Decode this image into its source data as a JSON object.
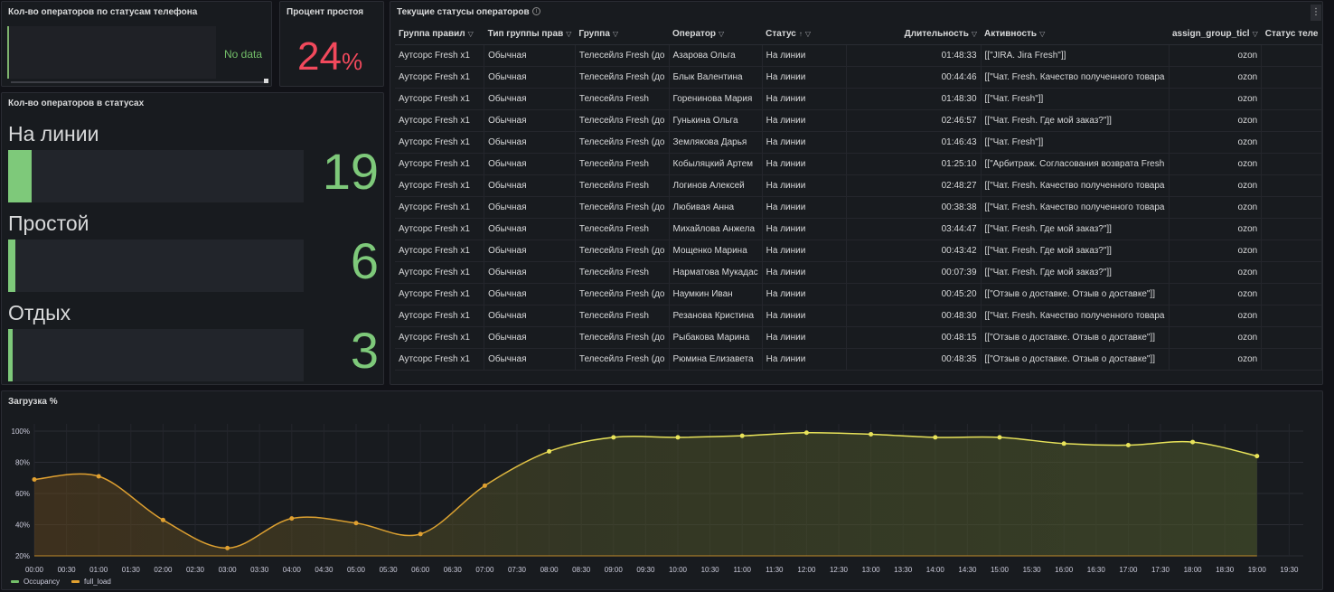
{
  "panels": {
    "phone_status": {
      "title": "Кол-во операторов по статусам телефона",
      "no_data": "No data"
    },
    "idle_percent": {
      "title": "Процент простоя",
      "value": "24",
      "unit": "%"
    },
    "operators_by_status": {
      "title": "Кол-во операторов в статусах",
      "max": 19,
      "rows": [
        {
          "label": "На линии",
          "value": "19",
          "fraction": 0.079
        },
        {
          "label": "Простой",
          "value": "6",
          "fraction": 0.025
        },
        {
          "label": "Отдых",
          "value": "3",
          "fraction": 0.014
        }
      ]
    },
    "current_statuses": {
      "title": "Текущие статусы операторов",
      "info_icon": "info-icon",
      "columns": [
        "Группа правил",
        "Тип группы прав",
        "Группа",
        "Оператор",
        "Статус",
        "Длительность",
        "Активность",
        "assign_group_ticl",
        "Статус теле"
      ],
      "sort_column": "Статус",
      "rows": [
        [
          "Аутсорс Fresh x1",
          "Обычная",
          "Телесейлз Fresh (до",
          "Азарова Ольга",
          "На линии",
          "01:48:33",
          "[[\"JIRA. Jira Fresh\"]]",
          "ozon",
          ""
        ],
        [
          "Аутсорс Fresh x1",
          "Обычная",
          "Телесейлз Fresh (до",
          "Блык Валентина",
          "На линии",
          "00:44:46",
          "[[\"Чат. Fresh. Качество полученного товара",
          "ozon",
          ""
        ],
        [
          "Аутсорс Fresh x1",
          "Обычная",
          "Телесейлз Fresh",
          "Горенинова Мария",
          "На линии",
          "01:48:30",
          "[[\"Чат. Fresh\"]]",
          "ozon",
          ""
        ],
        [
          "Аутсорс Fresh x1",
          "Обычная",
          "Телесейлз Fresh (до",
          "Гунькина Ольга",
          "На линии",
          "02:46:57",
          "[[\"Чат. Fresh. Где мой заказ?\"]]",
          "ozon",
          ""
        ],
        [
          "Аутсорс Fresh x1",
          "Обычная",
          "Телесейлз Fresh (до",
          "Землякова Дарья",
          "На линии",
          "01:46:43",
          "[[\"Чат. Fresh\"]]",
          "ozon",
          ""
        ],
        [
          "Аутсорс Fresh x1",
          "Обычная",
          "Телесейлз Fresh",
          "Кобыляцкий Артем",
          "На линии",
          "01:25:10",
          "[[\"Арбитраж. Согласования возврата Fresh",
          "ozon",
          ""
        ],
        [
          "Аутсорс Fresh x1",
          "Обычная",
          "Телесейлз Fresh",
          "Логинов Алексей",
          "На линии",
          "02:48:27",
          "[[\"Чат. Fresh. Качество полученного товара",
          "ozon",
          ""
        ],
        [
          "Аутсорс Fresh x1",
          "Обычная",
          "Телесейлз Fresh (до",
          "Любивая Анна",
          "На линии",
          "00:38:38",
          "[[\"Чат. Fresh. Качество полученного товара",
          "ozon",
          ""
        ],
        [
          "Аутсорс Fresh x1",
          "Обычная",
          "Телесейлз Fresh",
          "Михайлова Анжела",
          "На линии",
          "03:44:47",
          "[[\"Чат. Fresh. Где мой заказ?\"]]",
          "ozon",
          ""
        ],
        [
          "Аутсорс Fresh x1",
          "Обычная",
          "Телесейлз Fresh (до",
          "Мощенко Марина",
          "На линии",
          "00:43:42",
          "[[\"Чат. Fresh. Где мой заказ?\"]]",
          "ozon",
          ""
        ],
        [
          "Аутсорс Fresh x1",
          "Обычная",
          "Телесейлз Fresh",
          "Нарматова Мукадас",
          "На линии",
          "00:07:39",
          "[[\"Чат. Fresh. Где мой заказ?\"]]",
          "ozon",
          ""
        ],
        [
          "Аутсорс Fresh x1",
          "Обычная",
          "Телесейлз Fresh (до",
          "Наумкин Иван",
          "На линии",
          "00:45:20",
          "[[\"Отзыв о доставке. Отзыв о доставке\"]]",
          "ozon",
          ""
        ],
        [
          "Аутсорс Fresh x1",
          "Обычная",
          "Телесейлз Fresh",
          "Резанова Кристина",
          "На линии",
          "00:48:30",
          "[[\"Чат. Fresh. Качество полученного товара",
          "ozon",
          ""
        ],
        [
          "Аутсорс Fresh x1",
          "Обычная",
          "Телесейлз Fresh (до",
          "Рыбакова Марина",
          "На линии",
          "00:48:15",
          "[[\"Отзыв о доставке. Отзыв о доставке\"]]",
          "ozon",
          ""
        ],
        [
          "Аутсорс Fresh x1",
          "Обычная",
          "Телесейлз Fresh (до",
          "Рюмина Елизавета",
          "На линии",
          "00:48:35",
          "[[\"Отзыв о доставке. Отзыв о доставке\"]]",
          "ozon",
          ""
        ]
      ]
    },
    "load": {
      "title": "Загрузка %"
    }
  },
  "colors": {
    "green": "#7ec97a",
    "red": "#f2495c",
    "yellow": "#e8e35a",
    "orange": "#e0a030"
  },
  "chart_data": {
    "type": "line",
    "title": "Загрузка %",
    "x": [
      "00:00",
      "01:00",
      "02:00",
      "03:00",
      "04:00",
      "05:00",
      "06:00",
      "07:00",
      "08:00",
      "09:00",
      "10:00",
      "11:00",
      "12:00",
      "13:00",
      "14:00",
      "15:00",
      "16:00",
      "17:00",
      "18:00",
      "19:00"
    ],
    "x_ticks": [
      "00:00",
      "00:30",
      "01:00",
      "01:30",
      "02:00",
      "02:30",
      "03:00",
      "03:30",
      "04:00",
      "04:30",
      "05:00",
      "05:30",
      "06:00",
      "06:30",
      "07:00",
      "07:30",
      "08:00",
      "08:30",
      "09:00",
      "09:30",
      "10:00",
      "10:30",
      "11:00",
      "11:30",
      "12:00",
      "12:30",
      "13:00",
      "13:30",
      "14:00",
      "14:30",
      "15:00",
      "15:30",
      "16:00",
      "16:30",
      "17:00",
      "17:30",
      "18:00",
      "18:30",
      "19:00",
      "19:30"
    ],
    "y_ticks": [
      "20%",
      "40%",
      "60%",
      "80%",
      "100%"
    ],
    "ylim": [
      20,
      100
    ],
    "series": [
      {
        "name": "Occupancy",
        "color": "#e8e35a",
        "values": [
          69,
          71,
          43,
          25,
          44,
          41,
          34,
          65,
          87,
          96,
          96,
          97,
          99,
          98,
          96,
          96,
          92,
          91,
          93,
          84
        ]
      },
      {
        "name": "full_load",
        "color": "#e0a030",
        "values": [
          null,
          null,
          null,
          null,
          null,
          null,
          null,
          null,
          null,
          null,
          null,
          null,
          null,
          null,
          null,
          null,
          null,
          null,
          null,
          null
        ]
      }
    ],
    "legend": "bottom-left"
  }
}
